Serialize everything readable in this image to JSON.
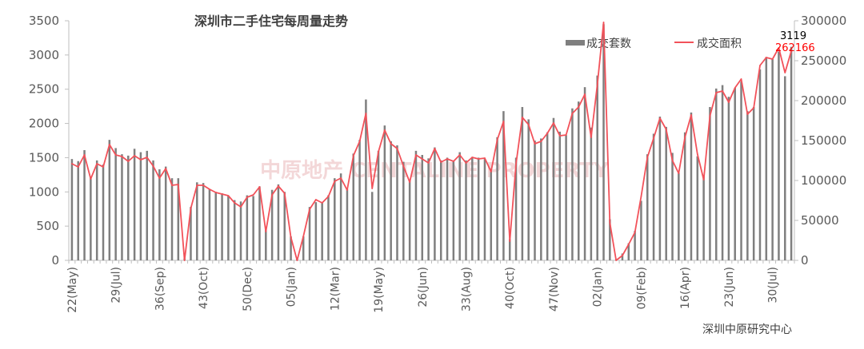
{
  "chart_data": {
    "type": "bar+line",
    "title": "深圳市二手住宅每周量走势",
    "source": "深圳中原研究中心",
    "watermark": "中原地产 CENTALINE PROPERTY",
    "legend": {
      "position": "top-right",
      "bar_label": "成交套数",
      "line_label": "成交面积"
    },
    "colors": {
      "bar": "#7f7f7f",
      "line": "#f2525a",
      "axis": "#bfbfbf",
      "text": "#595959",
      "callout_bar": "#000000",
      "callout_line": "#ff0000",
      "watermark": "#e8b0b3"
    },
    "y_left": {
      "min": 0,
      "max": 3500,
      "ticks": [
        0,
        500,
        1000,
        1500,
        2000,
        2500,
        3000,
        3500
      ]
    },
    "y_right": {
      "min": 0,
      "max": 300000,
      "ticks": [
        0,
        50000,
        100000,
        150000,
        200000,
        250000,
        300000
      ]
    },
    "x_tick_labels": [
      "22(May)",
      "29(Jul)",
      "36(Sep)",
      "43(Oct)",
      "50(Dec)",
      "05(Jan)",
      "12(Mar)",
      "19(May)",
      "26(Jun)",
      "33(Aug)",
      "40(Oct)",
      "47(Nov)",
      "02(Jan)",
      "09(Feb)",
      "16(Apr)",
      "23(Jun)",
      "30(Jul)"
    ],
    "x_tick_indices": [
      0,
      7,
      14,
      21,
      28,
      35,
      42,
      49,
      56,
      63,
      70,
      77,
      84,
      91,
      98,
      105,
      112
    ],
    "last_bar_label": "3119",
    "last_line_label": "262166",
    "units_sold": [
      1480,
      1450,
      1610,
      1210,
      1460,
      1400,
      1760,
      1640,
      1550,
      1530,
      1630,
      1580,
      1600,
      1460,
      1330,
      1370,
      1200,
      1200,
      30,
      780,
      1140,
      1130,
      1040,
      1000,
      980,
      940,
      880,
      860,
      950,
      940,
      1080,
      450,
      1030,
      1110,
      1000,
      350,
      30,
      350,
      780,
      850,
      840,
      950,
      1200,
      1270,
      1040,
      1560,
      1760,
      2350,
      1000,
      1600,
      1970,
      1740,
      1680,
      1440,
      1160,
      1600,
      1540,
      1490,
      1650,
      1460,
      1500,
      1460,
      1580,
      1460,
      1510,
      1500,
      1480,
      1340,
      1800,
      2180,
      310,
      1500,
      2240,
      2060,
      1750,
      1780,
      1870,
      2080,
      1880,
      1830,
      2220,
      2320,
      2530,
      1940,
      2700,
      3450,
      600,
      20,
      100,
      250,
      430,
      870,
      1550,
      1850,
      2100,
      1950,
      1570,
      1280,
      1870,
      2160,
      1520,
      1250,
      2240,
      2510,
      2560,
      2390,
      2520,
      2610,
      2180,
      2240,
      2790,
      2970,
      2940,
      3050,
      2690,
      3119
    ],
    "floor_area": [
      121000,
      117000,
      132000,
      102000,
      121000,
      117000,
      145000,
      132000,
      130000,
      124000,
      131000,
      126000,
      129000,
      118000,
      103000,
      115000,
      94000,
      95000,
      0,
      65000,
      94000,
      94000,
      89000,
      85000,
      83000,
      81000,
      72000,
      67000,
      79000,
      82000,
      92000,
      36000,
      82000,
      93000,
      84000,
      29000,
      0,
      30000,
      64000,
      76000,
      72000,
      80000,
      99000,
      103000,
      88000,
      131000,
      149000,
      184000,
      90000,
      136000,
      163000,
      146000,
      140000,
      118000,
      98000,
      132000,
      127000,
      122000,
      140000,
      123000,
      127000,
      124000,
      132000,
      122000,
      129000,
      127000,
      128000,
      111000,
      151000,
      174000,
      24000,
      121000,
      179000,
      170000,
      146000,
      149000,
      159000,
      172000,
      156000,
      157000,
      184000,
      192000,
      208000,
      154000,
      220000,
      298000,
      47000,
      0,
      6000,
      20000,
      35000,
      80000,
      129000,
      153000,
      178000,
      164000,
      125000,
      109000,
      154000,
      182000,
      133000,
      101000,
      181000,
      210000,
      212000,
      198000,
      216000,
      227000,
      183000,
      191000,
      244000,
      254000,
      252000,
      266000,
      235000,
      262166
    ]
  }
}
